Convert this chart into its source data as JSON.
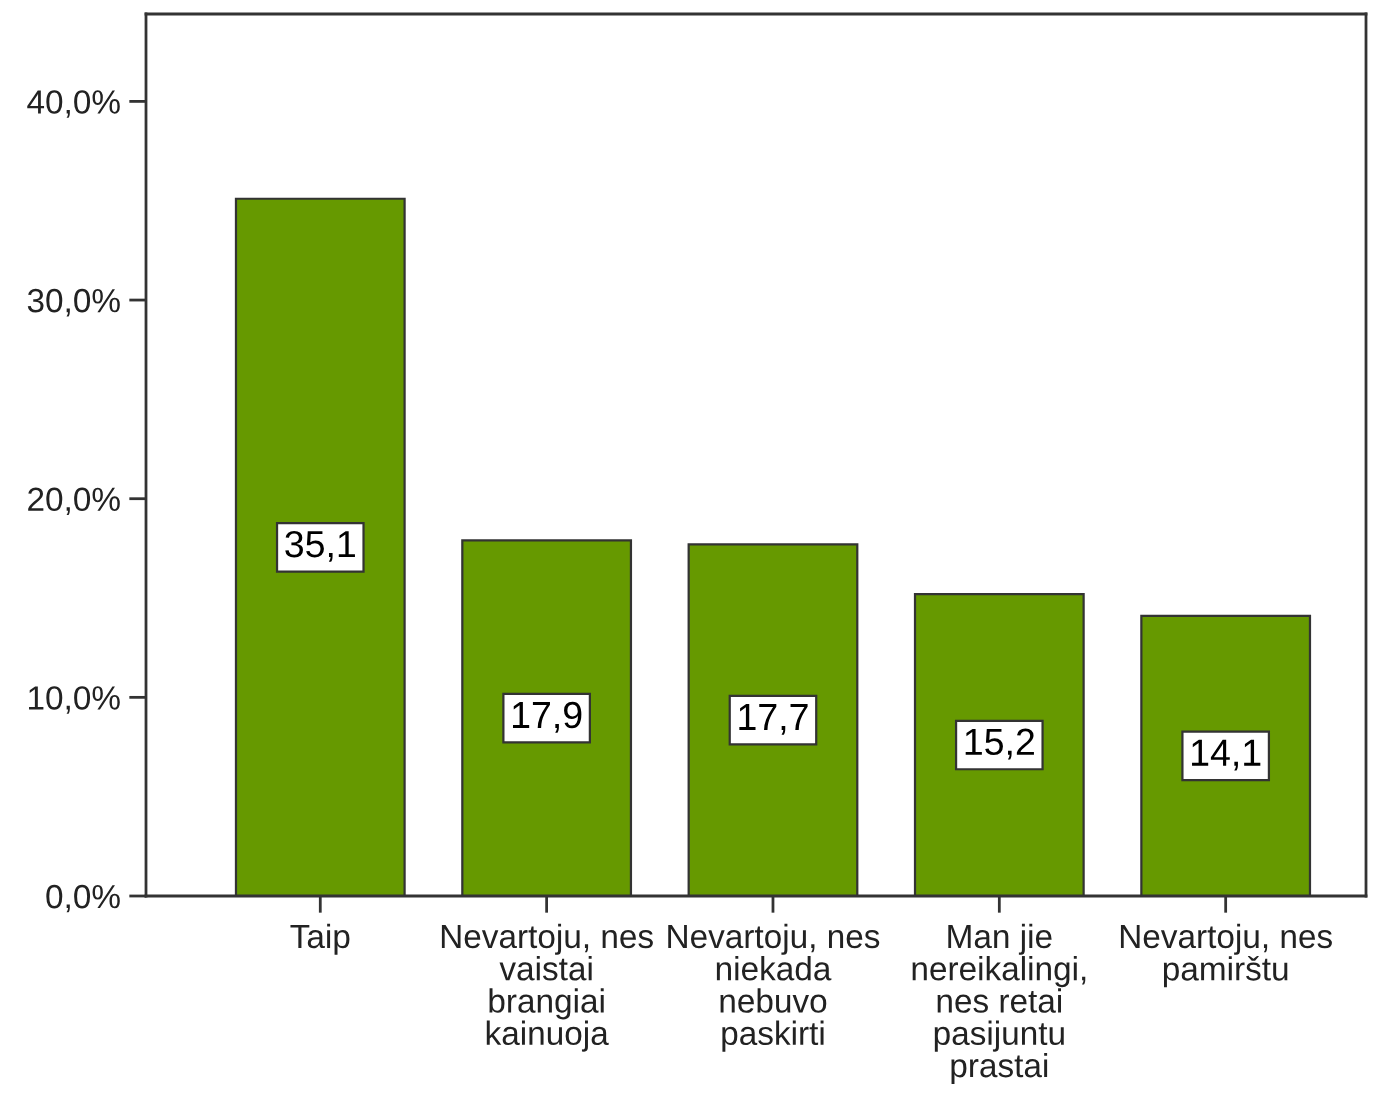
{
  "chart_data": {
    "type": "bar",
    "categories": [
      "Taip",
      "Nevartoju, nes\nvaistai\nbrangiai\nkainuoja",
      "Nevartoju, nes\nniekada\nnebuvo\npaskirti",
      "Man jie\nnereikalingi,\nnes retai\npasijuntu\nprastai",
      "Nevartoju, nes\npamirštu"
    ],
    "values": [
      35.1,
      17.9,
      17.7,
      15.2,
      14.1
    ],
    "value_labels": [
      "35,1",
      "17,9",
      "17,7",
      "15,2",
      "14,1"
    ],
    "color": "#669900",
    "ylim": [
      0,
      44.4
    ],
    "yticks": [
      {
        "value": 0,
        "label": "0,0%"
      },
      {
        "value": 10,
        "label": "10,0%"
      },
      {
        "value": 20,
        "label": "20,0%"
      },
      {
        "value": 30,
        "label": "30,0%"
      },
      {
        "value": 40,
        "label": "40,0%"
      }
    ],
    "grid": false,
    "legend": false
  }
}
